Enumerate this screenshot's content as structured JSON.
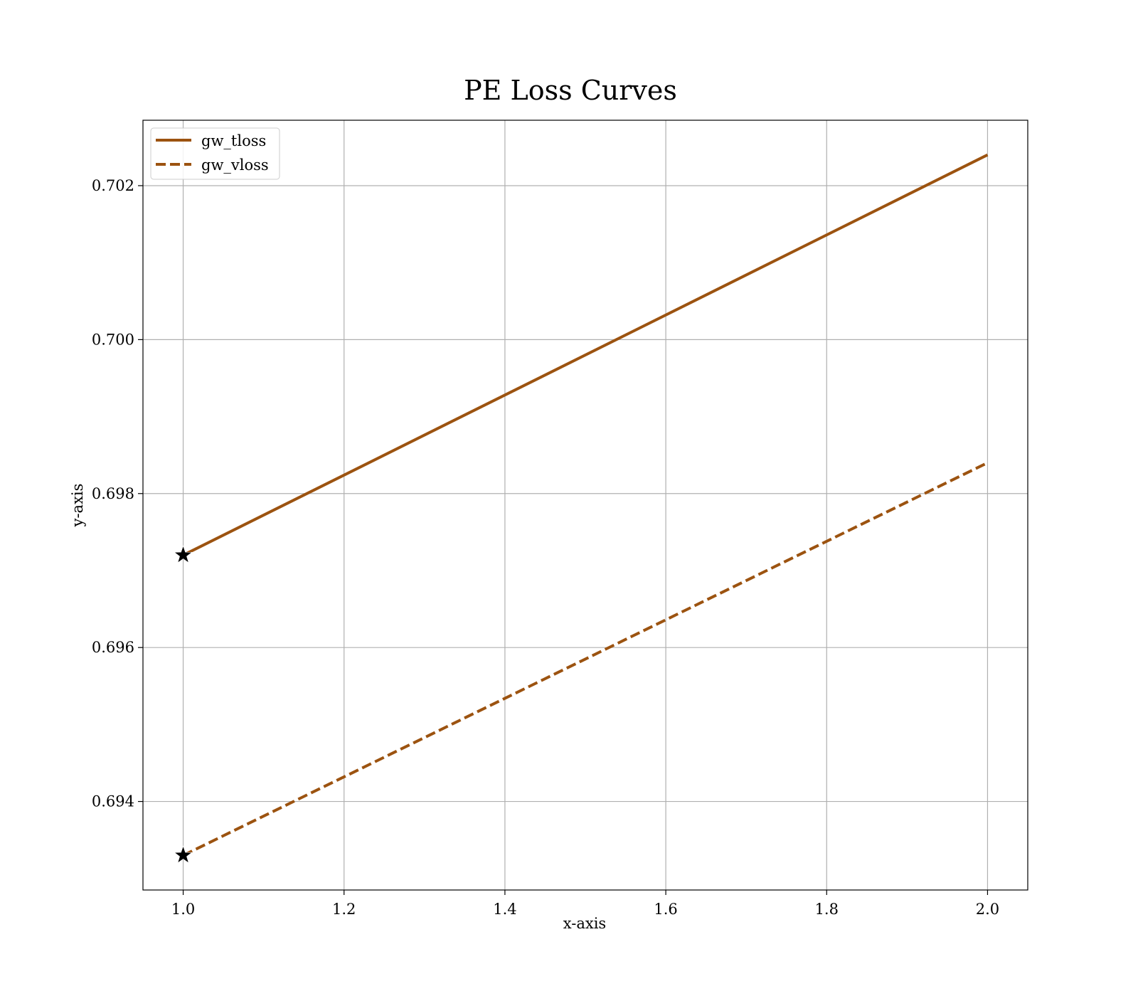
{
  "chart_data": {
    "type": "line",
    "title": "PE Loss Curves",
    "xlabel": "x-axis",
    "ylabel": "y-axis",
    "xlim": [
      0.95,
      2.05
    ],
    "ylim": [
      0.69285,
      0.70285
    ],
    "xticks": [
      1.0,
      1.2,
      1.4,
      1.6,
      1.8,
      2.0
    ],
    "xtick_labels": [
      "1.0",
      "1.2",
      "1.4",
      "1.6",
      "1.8",
      "2.0"
    ],
    "yticks": [
      0.694,
      0.696,
      0.698,
      0.7,
      0.702
    ],
    "ytick_labels": [
      "0.694",
      "0.696",
      "0.698",
      "0.700",
      "0.702"
    ],
    "grid": true,
    "legend_position": "top-left",
    "series": [
      {
        "name": "gw_tloss",
        "x": [
          1,
          2
        ],
        "y": [
          0.6972,
          0.7024
        ],
        "color": "#9C5310",
        "style": "solid",
        "marker_at_x": 1
      },
      {
        "name": "gw_vloss",
        "x": [
          1,
          2
        ],
        "y": [
          0.6933,
          0.6984
        ],
        "color": "#9C5310",
        "style": "dashed",
        "marker_at_x": 1
      }
    ],
    "marker": {
      "shape": "star",
      "color": "#000000"
    }
  }
}
